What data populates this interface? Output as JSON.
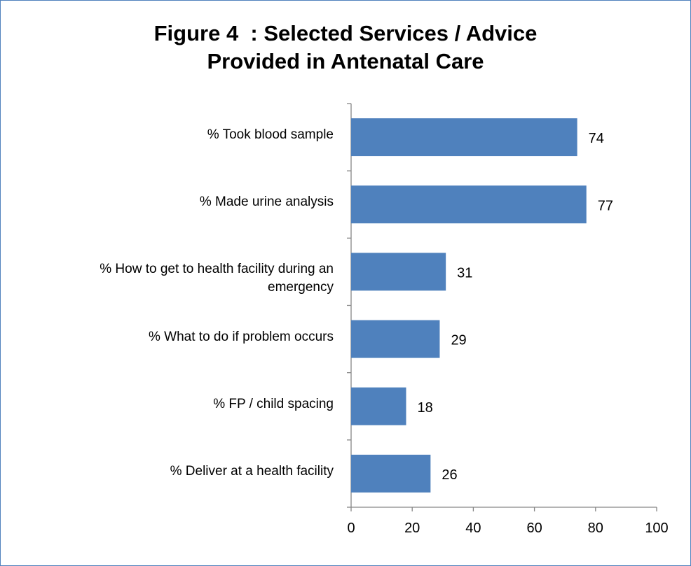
{
  "chart_data": {
    "type": "bar",
    "orientation": "horizontal",
    "title_lines": [
      "Figure 4  : Selected Services / Advice",
      "Provided in Antenatal Care"
    ],
    "categories": [
      "% Took blood sample",
      "% Made urine analysis",
      "%  How to get to health facility during an emergency",
      "% What to do if problem occurs",
      "% FP / child spacing",
      "% Deliver at a health facility"
    ],
    "category_lines": [
      [
        "% Took blood sample"
      ],
      [
        "% Made urine analysis"
      ],
      [
        "%  How to get to health facility during an",
        "emergency"
      ],
      [
        "% What to do if problem occurs"
      ],
      [
        "% FP / child spacing"
      ],
      [
        "% Deliver at a health facility"
      ]
    ],
    "values": [
      74,
      77,
      31,
      29,
      18,
      26
    ],
    "data_labels": [
      "74",
      "77",
      "31",
      "29",
      "18",
      "26"
    ],
    "xlim": [
      0,
      100
    ],
    "xticks": [
      0,
      20,
      40,
      60,
      80,
      100
    ],
    "xtick_labels": [
      "0",
      "20",
      "40",
      "60",
      "80",
      "100"
    ],
    "xlabel": "",
    "ylabel": "",
    "grid": false,
    "legend": "none",
    "bar_color": "#4f81bd",
    "axis_color": "#868686",
    "frame_color": "#4f81bd"
  }
}
